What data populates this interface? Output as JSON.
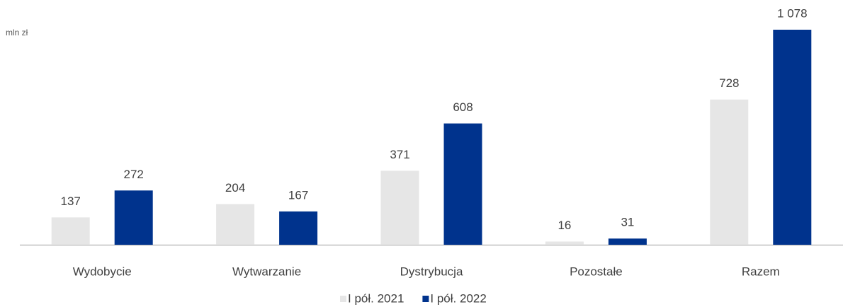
{
  "chart_data": {
    "type": "bar",
    "y_label": "mln zł",
    "categories": [
      "Wydobycie",
      "Wytwarzanie",
      "Dystrybucja",
      "Pozostałe",
      "Razem"
    ],
    "series": [
      {
        "name": "I pół. 2021",
        "color": "#e6e6e6",
        "values": [
          137,
          204,
          371,
          16,
          728
        ]
      },
      {
        "name": "I pół. 2022",
        "color": "#00338d",
        "values": [
          272,
          167,
          608,
          31,
          1078
        ],
        "value_labels": [
          "272",
          "167",
          "608",
          "31",
          "1 078"
        ]
      }
    ],
    "legend": "bottom"
  }
}
